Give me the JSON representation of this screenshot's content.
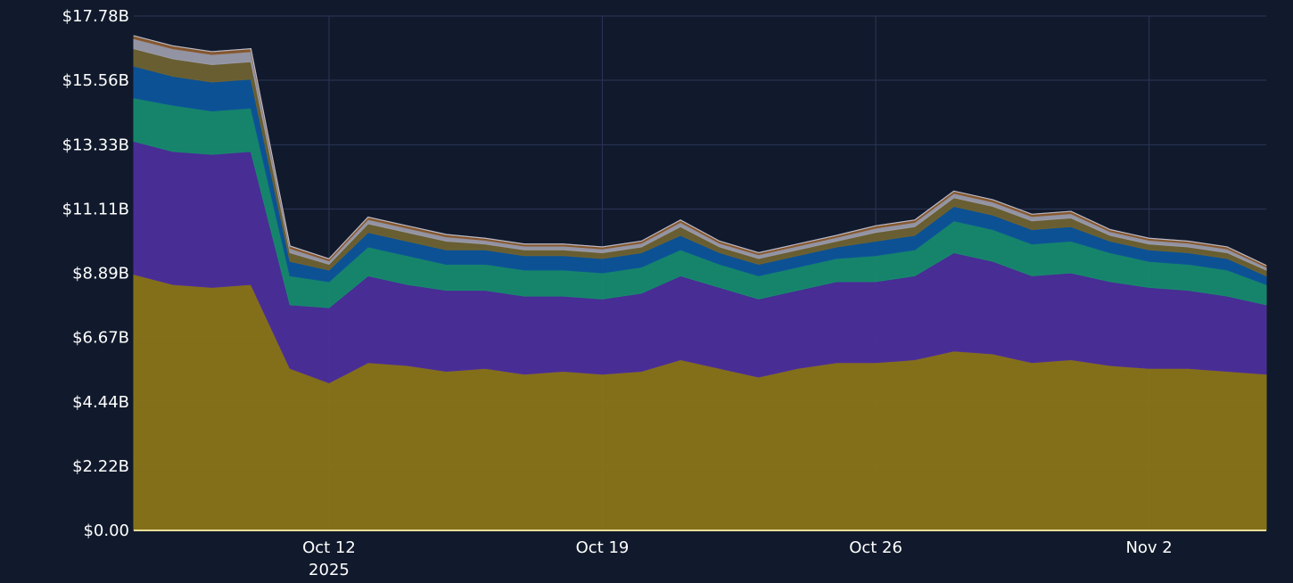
{
  "page": {
    "background": "#111a2c"
  },
  "chart_data": {
    "type": "area",
    "stacked": true,
    "title": "",
    "xlabel": "",
    "ylabel": "",
    "grid": true,
    "legend": "none",
    "x_range": [
      "2025-10-07",
      "2025-11-05"
    ],
    "ylim": [
      0,
      17.78
    ],
    "y_ticks": [
      {
        "value": 0,
        "label": "$0.00"
      },
      {
        "value": 2.22,
        "label": "$2.22B"
      },
      {
        "value": 4.44,
        "label": "$4.44B"
      },
      {
        "value": 6.67,
        "label": "$6.67B"
      },
      {
        "value": 8.89,
        "label": "$8.89B"
      },
      {
        "value": 11.11,
        "label": "$11.11B"
      },
      {
        "value": 13.33,
        "label": "$13.33B"
      },
      {
        "value": 15.56,
        "label": "$15.56B"
      },
      {
        "value": 17.78,
        "label": "$17.78B"
      }
    ],
    "x_ticks": [
      {
        "date": "2025-10-12",
        "label": "Oct 12",
        "sublabel": "2025"
      },
      {
        "date": "2025-10-19",
        "label": "Oct 19",
        "sublabel": ""
      },
      {
        "date": "2025-10-26",
        "label": "Oct 26",
        "sublabel": ""
      },
      {
        "date": "2025-11-02",
        "label": "Nov 2",
        "sublabel": ""
      }
    ],
    "x": [
      "2025-10-07",
      "2025-10-08",
      "2025-10-09",
      "2025-10-10",
      "2025-10-11",
      "2025-10-12",
      "2025-10-13",
      "2025-10-14",
      "2025-10-15",
      "2025-10-16",
      "2025-10-17",
      "2025-10-18",
      "2025-10-19",
      "2025-10-20",
      "2025-10-21",
      "2025-10-22",
      "2025-10-23",
      "2025-10-24",
      "2025-10-25",
      "2025-10-26",
      "2025-10-27",
      "2025-10-28",
      "2025-10-29",
      "2025-10-30",
      "2025-10-31",
      "2025-11-01",
      "2025-11-02",
      "2025-11-03",
      "2025-11-04",
      "2025-11-05"
    ],
    "series": [
      {
        "color": "#8a7419",
        "values": [
          8.85,
          8.5,
          8.4,
          8.5,
          5.6,
          5.1,
          5.8,
          5.7,
          5.5,
          5.6,
          5.4,
          5.5,
          5.4,
          5.5,
          5.9,
          5.6,
          5.3,
          5.6,
          5.8,
          5.8,
          5.9,
          6.2,
          6.1,
          5.8,
          5.9,
          5.7,
          5.6,
          5.6,
          5.5,
          5.4
        ]
      },
      {
        "color": "#4c2e9a",
        "values": [
          4.6,
          4.6,
          4.6,
          4.6,
          2.2,
          2.6,
          3.0,
          2.8,
          2.8,
          2.7,
          2.7,
          2.6,
          2.6,
          2.7,
          2.9,
          2.8,
          2.7,
          2.7,
          2.8,
          2.8,
          2.9,
          3.4,
          3.2,
          3.0,
          3.0,
          2.9,
          2.8,
          2.7,
          2.6,
          2.4
        ]
      },
      {
        "color": "#178a6e",
        "values": [
          1.5,
          1.6,
          1.5,
          1.5,
          1.0,
          0.9,
          1.0,
          1.0,
          0.9,
          0.9,
          0.9,
          0.9,
          0.9,
          0.9,
          0.9,
          0.8,
          0.8,
          0.8,
          0.8,
          0.9,
          0.9,
          1.1,
          1.1,
          1.1,
          1.1,
          1.0,
          0.9,
          0.9,
          0.9,
          0.7
        ]
      },
      {
        "color": "#0d5499",
        "values": [
          1.1,
          1.0,
          1.0,
          1.0,
          0.5,
          0.4,
          0.5,
          0.5,
          0.5,
          0.5,
          0.5,
          0.5,
          0.5,
          0.5,
          0.5,
          0.4,
          0.4,
          0.4,
          0.4,
          0.5,
          0.5,
          0.5,
          0.5,
          0.5,
          0.5,
          0.4,
          0.4,
          0.4,
          0.4,
          0.3
        ]
      },
      {
        "color": "#6e6232",
        "values": [
          0.6,
          0.6,
          0.6,
          0.6,
          0.3,
          0.2,
          0.3,
          0.3,
          0.3,
          0.2,
          0.2,
          0.2,
          0.2,
          0.2,
          0.3,
          0.2,
          0.2,
          0.2,
          0.2,
          0.3,
          0.3,
          0.3,
          0.3,
          0.3,
          0.3,
          0.2,
          0.2,
          0.2,
          0.2,
          0.2
        ]
      },
      {
        "color": "#9a9aaa",
        "values": [
          0.35,
          0.35,
          0.35,
          0.35,
          0.15,
          0.12,
          0.15,
          0.15,
          0.15,
          0.13,
          0.13,
          0.13,
          0.13,
          0.13,
          0.15,
          0.13,
          0.13,
          0.13,
          0.13,
          0.15,
          0.15,
          0.15,
          0.15,
          0.15,
          0.15,
          0.13,
          0.13,
          0.13,
          0.13,
          0.1
        ]
      },
      {
        "color": "#8a5a2e",
        "values": [
          0.1,
          0.1,
          0.1,
          0.1,
          0.08,
          0.07,
          0.08,
          0.08,
          0.08,
          0.07,
          0.07,
          0.07,
          0.07,
          0.07,
          0.08,
          0.07,
          0.07,
          0.07,
          0.07,
          0.08,
          0.08,
          0.08,
          0.08,
          0.08,
          0.08,
          0.07,
          0.07,
          0.07,
          0.07,
          0.06
        ]
      }
    ]
  }
}
